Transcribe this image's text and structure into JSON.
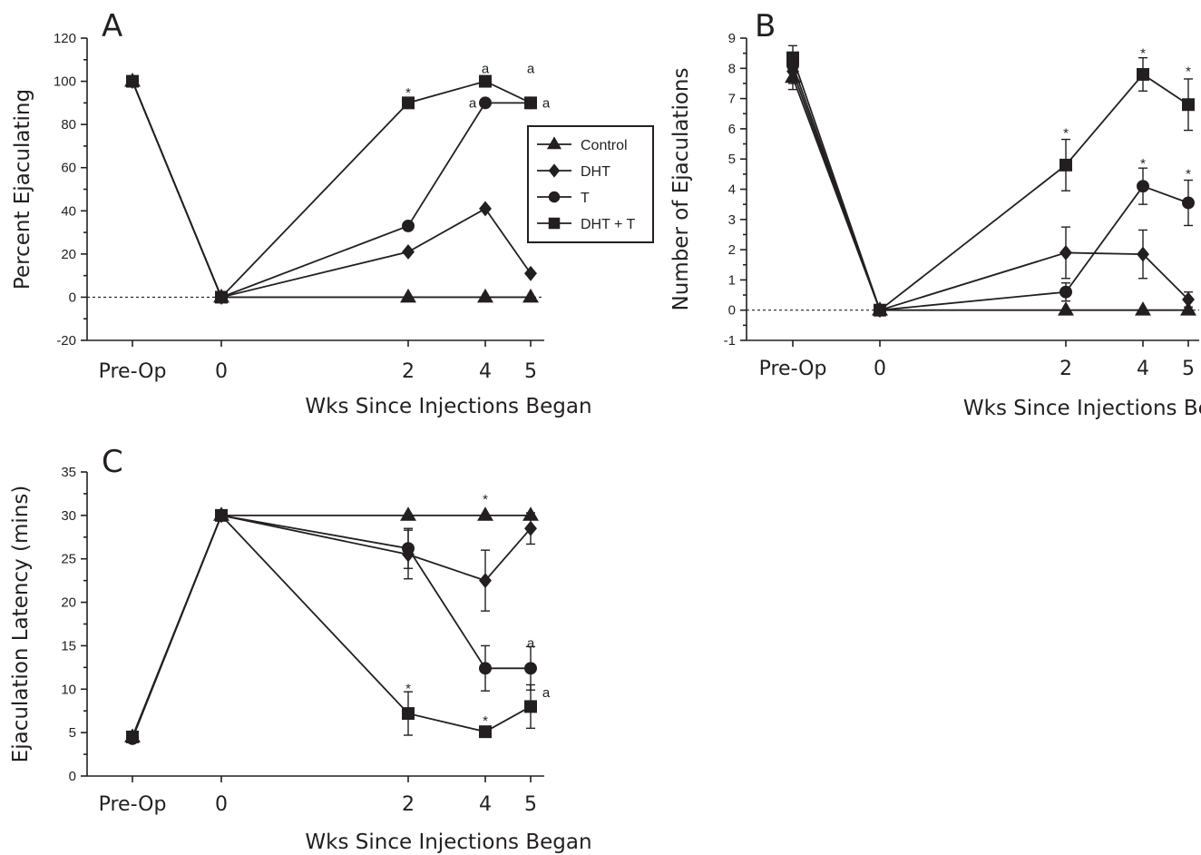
{
  "chart_data": [
    {
      "panel": "A",
      "type": "line",
      "x_categories": [
        "Pre-Op",
        "0",
        "2",
        "4",
        "5"
      ],
      "xlabel": "Wks Since Injections Began",
      "ylabel": "Percent Ejaculating",
      "ylim": [
        -20,
        120
      ],
      "yticks": [
        "-20",
        "0",
        "20",
        "40",
        "60",
        "80",
        "100",
        "120"
      ],
      "zero_line": true,
      "series": [
        {
          "name": "Control",
          "marker": "triangle",
          "values": [
            100,
            0,
            0,
            0,
            0
          ]
        },
        {
          "name": "DHT",
          "marker": "diamond",
          "values": [
            100,
            0,
            21,
            41,
            11
          ]
        },
        {
          "name": "T",
          "marker": "circle",
          "values": [
            100,
            0,
            33,
            90,
            90
          ]
        },
        {
          "name": "DHT + T",
          "marker": "square",
          "values": [
            100,
            0,
            90,
            100,
            90
          ]
        }
      ],
      "annotations": [
        {
          "text": "*",
          "x": "2",
          "y": 96
        },
        {
          "text": "a",
          "x": "4",
          "y": 106
        },
        {
          "text": "a",
          "x": "4",
          "y": 90,
          "side": "left"
        },
        {
          "text": "a",
          "x": "5",
          "y": 106
        },
        {
          "text": "a",
          "x": "5",
          "y": 90,
          "side": "right"
        }
      ],
      "legend": {
        "placement": "right",
        "entries": [
          {
            "label": "Control",
            "marker": "triangle"
          },
          {
            "label": "DHT",
            "marker": "diamond"
          },
          {
            "label": "T",
            "marker": "circle"
          },
          {
            "label": "DHT + T",
            "marker": "square"
          }
        ]
      }
    },
    {
      "panel": "B",
      "type": "line",
      "x_categories": [
        "Pre-Op",
        "0",
        "2",
        "4",
        "5"
      ],
      "xlabel": "Wks Since Injections Began",
      "ylabel": "Number of Ejaculations",
      "ylim": [
        -1,
        9
      ],
      "yticks": [
        "-1",
        "0",
        "1",
        "2",
        "3",
        "4",
        "5",
        "6",
        "7",
        "8",
        "9"
      ],
      "zero_line": true,
      "series": [
        {
          "name": "Control",
          "marker": "triangle",
          "values": [
            7.7,
            0,
            0,
            0,
            0
          ],
          "errors": [
            0.4,
            0,
            0,
            0,
            0
          ]
        },
        {
          "name": "DHT",
          "marker": "diamond",
          "values": [
            7.9,
            0,
            1.9,
            1.85,
            0.35
          ],
          "errors": [
            0.4,
            0,
            0.85,
            0.8,
            0.25
          ]
        },
        {
          "name": "T",
          "marker": "circle",
          "values": [
            8.1,
            0,
            0.6,
            4.1,
            3.55
          ],
          "errors": [
            0.4,
            0,
            0.3,
            0.6,
            0.75
          ]
        },
        {
          "name": "DHT + T",
          "marker": "square",
          "values": [
            8.35,
            0,
            4.8,
            7.8,
            6.8
          ],
          "errors": [
            0.4,
            0,
            0.85,
            0.55,
            0.85
          ]
        }
      ],
      "annotations": [
        {
          "text": "*",
          "x": "2",
          "y": 5.95
        },
        {
          "text": "*",
          "x": "4",
          "y": 8.6
        },
        {
          "text": "*",
          "x": "5",
          "y": 8.0
        },
        {
          "text": "*",
          "x": "4",
          "y": 4.95
        },
        {
          "text": "*",
          "x": "5",
          "y": 4.6
        }
      ]
    },
    {
      "panel": "C",
      "type": "line",
      "x_categories": [
        "Pre-Op",
        "0",
        "2",
        "4",
        "5"
      ],
      "xlabel": "Wks Since Injections Began",
      "ylabel": "Ejaculation Latency (mins)",
      "ylim": [
        0,
        35
      ],
      "yticks": [
        "0",
        "5",
        "10",
        "15",
        "20",
        "25",
        "30",
        "35"
      ],
      "zero_line": false,
      "series": [
        {
          "name": "Control",
          "marker": "triangle",
          "values": [
            4.5,
            30,
            30,
            30,
            30
          ],
          "errors": [
            0,
            0,
            0,
            0,
            0
          ]
        },
        {
          "name": "DHT",
          "marker": "diamond",
          "values": [
            4.5,
            30,
            25.5,
            22.5,
            28.5
          ],
          "errors": [
            0,
            0,
            2.8,
            3.5,
            1.8
          ]
        },
        {
          "name": "T",
          "marker": "circle",
          "values": [
            4.3,
            30,
            26.2,
            12.4,
            12.4
          ],
          "errors": [
            0,
            0,
            2.3,
            2.6,
            2.5
          ]
        },
        {
          "name": "DHT + T",
          "marker": "square",
          "values": [
            4.5,
            30,
            7.2,
            5.1,
            8.0
          ],
          "errors": [
            0,
            0,
            2.5,
            0,
            2.5
          ]
        }
      ],
      "annotations": [
        {
          "text": "*",
          "x": "4",
          "y": 32.2
        },
        {
          "text": "*",
          "x": "2",
          "y": 10.4
        },
        {
          "text": "*",
          "x": "4",
          "y": 6.7
        },
        {
          "text": "a",
          "x": "5",
          "y": 15.3
        },
        {
          "text": "a",
          "x": "5",
          "y": 9.6,
          "side": "right"
        }
      ]
    }
  ]
}
